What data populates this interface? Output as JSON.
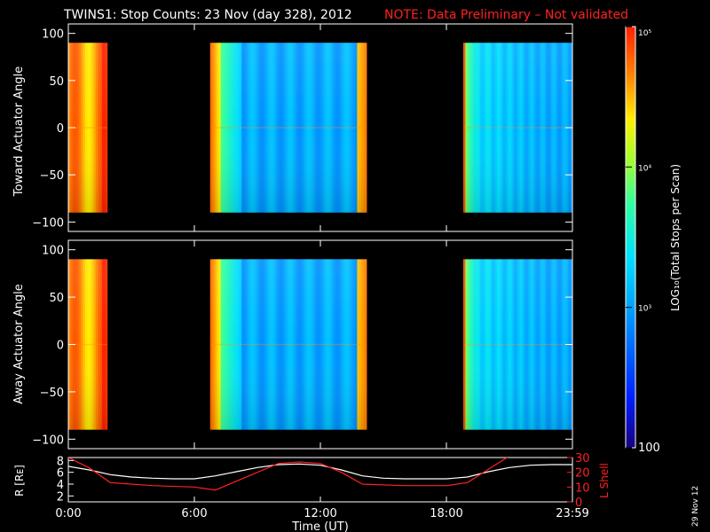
{
  "header": {
    "title": "TWINS1: Stop Counts: 23 Nov (day 328), 2012",
    "note": "NOTE: Data Preliminary – Not validated"
  },
  "stamp": "29 Nov 12",
  "colors": {
    "background": "#000000",
    "axis": "#ffffff",
    "note": "#ff2020",
    "lshell_line": "#ff2020",
    "r_line": "#ffffff"
  },
  "chart_data": [
    {
      "type": "heatmap",
      "panel": "toward",
      "ylabel": "Toward Actuator Angle",
      "ylim": [
        -110,
        110
      ],
      "yticks": [
        "100",
        "50",
        "0",
        "−50",
        "−100"
      ],
      "ytick_values": [
        100,
        50,
        0,
        -50,
        -100
      ],
      "xlim": [
        0,
        24
      ],
      "angle_range": [
        -90,
        90
      ],
      "data_intervals_hours": [
        [
          0,
          1.85
        ],
        [
          6.75,
          14.2
        ],
        [
          18.8,
          24
        ]
      ]
    },
    {
      "type": "heatmap",
      "panel": "away",
      "ylabel": "Away Actuator Angle",
      "ylim": [
        -110,
        110
      ],
      "yticks": [
        "100",
        "50",
        "0",
        "−50",
        "−100"
      ],
      "ytick_values": [
        100,
        50,
        0,
        -50,
        -100
      ],
      "xlim": [
        0,
        24
      ],
      "angle_range": [
        -90,
        90
      ],
      "data_intervals_hours": [
        [
          0,
          1.85
        ],
        [
          6.75,
          14.2
        ],
        [
          18.8,
          24
        ]
      ]
    },
    {
      "type": "line",
      "panel": "orbit",
      "ylabel_left": "R [Rᴇ]",
      "ylabel_right": "L Shell",
      "xlabel": "Time (UT)",
      "xticks": [
        "0:00",
        "6:00",
        "12:00",
        "18:00",
        "23:59"
      ],
      "xtick_hours": [
        0,
        6,
        12,
        18,
        24
      ],
      "xlim": [
        0,
        24
      ],
      "yticks_left": [
        "8",
        "6",
        "4",
        "2"
      ],
      "ytick_left_values": [
        8,
        6,
        4,
        2
      ],
      "ylim_left": [
        1,
        8.5
      ],
      "yticks_right": [
        "30",
        "20",
        "10",
        "0"
      ],
      "ytick_right_values": [
        30,
        20,
        10,
        0
      ],
      "ylim_right": [
        0,
        30
      ],
      "series": [
        {
          "axis": "left",
          "x": [
            0,
            1,
            2,
            3,
            4,
            5,
            6,
            7,
            8,
            9,
            10,
            11,
            12,
            13,
            14,
            15,
            16,
            17,
            18,
            19,
            20,
            21,
            22,
            23,
            24
          ],
          "y": [
            7.0,
            6.4,
            5.6,
            5.2,
            5.0,
            4.9,
            4.9,
            5.4,
            6.1,
            6.8,
            7.3,
            7.4,
            7.2,
            6.4,
            5.4,
            5.0,
            4.9,
            4.9,
            4.9,
            5.2,
            6.1,
            6.8,
            7.2,
            7.3,
            7.3
          ]
        },
        {
          "axis": "right",
          "x": [
            0,
            1,
            2,
            4,
            6,
            7,
            8,
            9,
            10,
            11,
            12,
            13,
            14,
            16,
            18,
            19,
            20,
            21
          ],
          "y": [
            30,
            23,
            13,
            11,
            10,
            8,
            14,
            20,
            26,
            27,
            26,
            20,
            12,
            11,
            11,
            13,
            22,
            31
          ]
        }
      ]
    },
    {
      "type": "colorbar",
      "ylabel": "LOG₁₀(Total Stops per Scan)",
      "ticks": [
        "10⁵",
        "10⁴",
        "10³",
        "100"
      ],
      "tick_values": [
        100000,
        10000,
        1000,
        100
      ],
      "range": [
        100,
        100000
      ],
      "scale": "log"
    }
  ]
}
